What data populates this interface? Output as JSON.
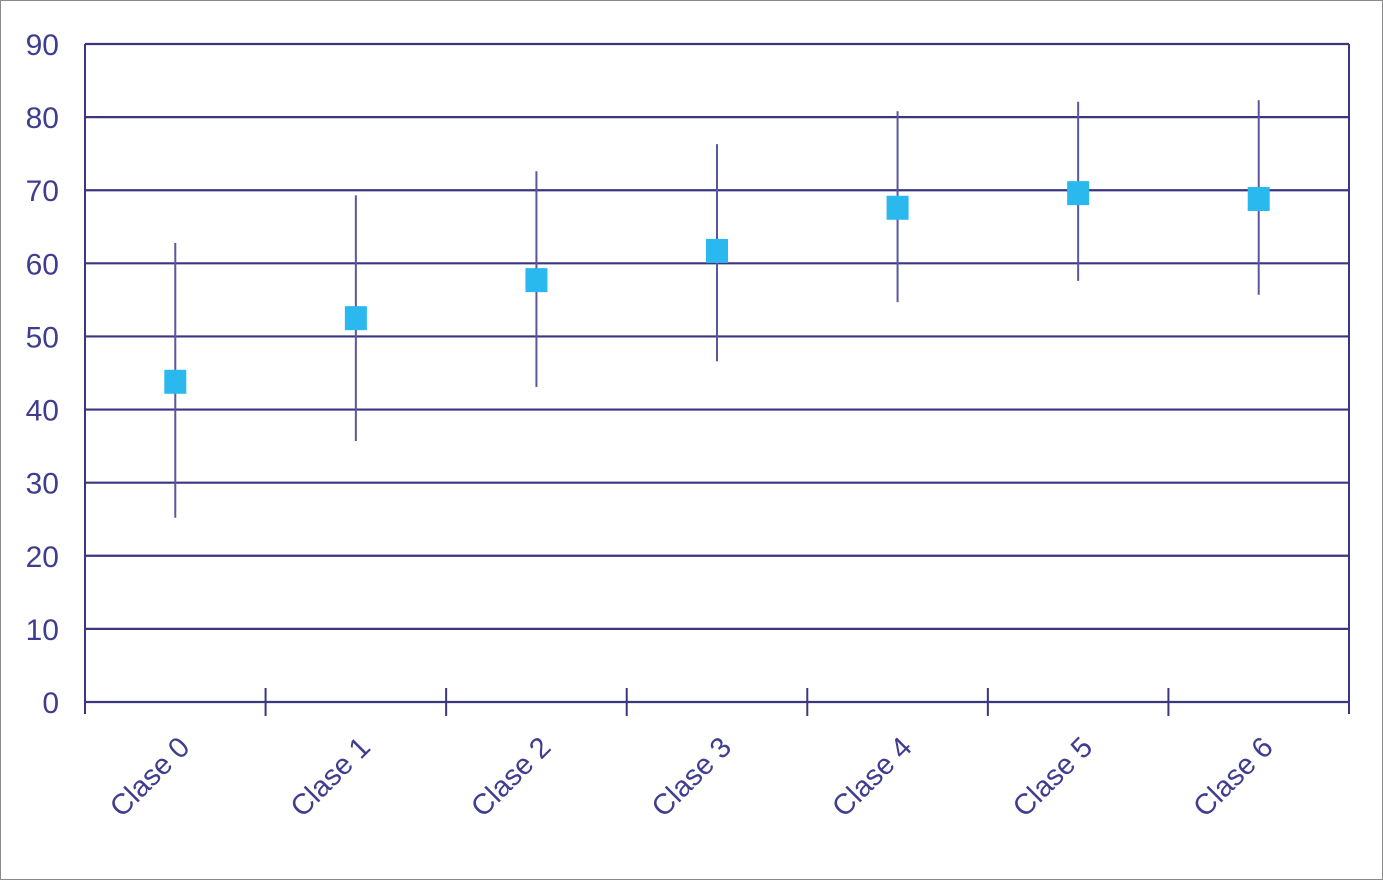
{
  "chart_data": {
    "type": "scatter",
    "title": "",
    "xlabel": "",
    "ylabel": "",
    "categories": [
      "Clase 0",
      "Clase 1",
      "Clase 2",
      "Clase 3",
      "Clase 4",
      "Clase 5",
      "Clase 6"
    ],
    "values": [
      43.8,
      52.5,
      57.7,
      61.7,
      67.6,
      69.6,
      68.8
    ],
    "error_high": [
      62.8,
      69.3,
      72.6,
      76.3,
      80.8,
      82.1,
      82.3
    ],
    "error_low": [
      25.2,
      35.7,
      43.1,
      46.6,
      54.7,
      57.6,
      55.7
    ],
    "ylim": [
      0,
      90
    ],
    "yticks": [
      0,
      10,
      20,
      30,
      40,
      50,
      60,
      70,
      80,
      90
    ],
    "grid": true,
    "legend": "none",
    "colors": {
      "marker": "#29b9ee",
      "lines": "#3a3680",
      "text": "#3f3d8f"
    }
  }
}
